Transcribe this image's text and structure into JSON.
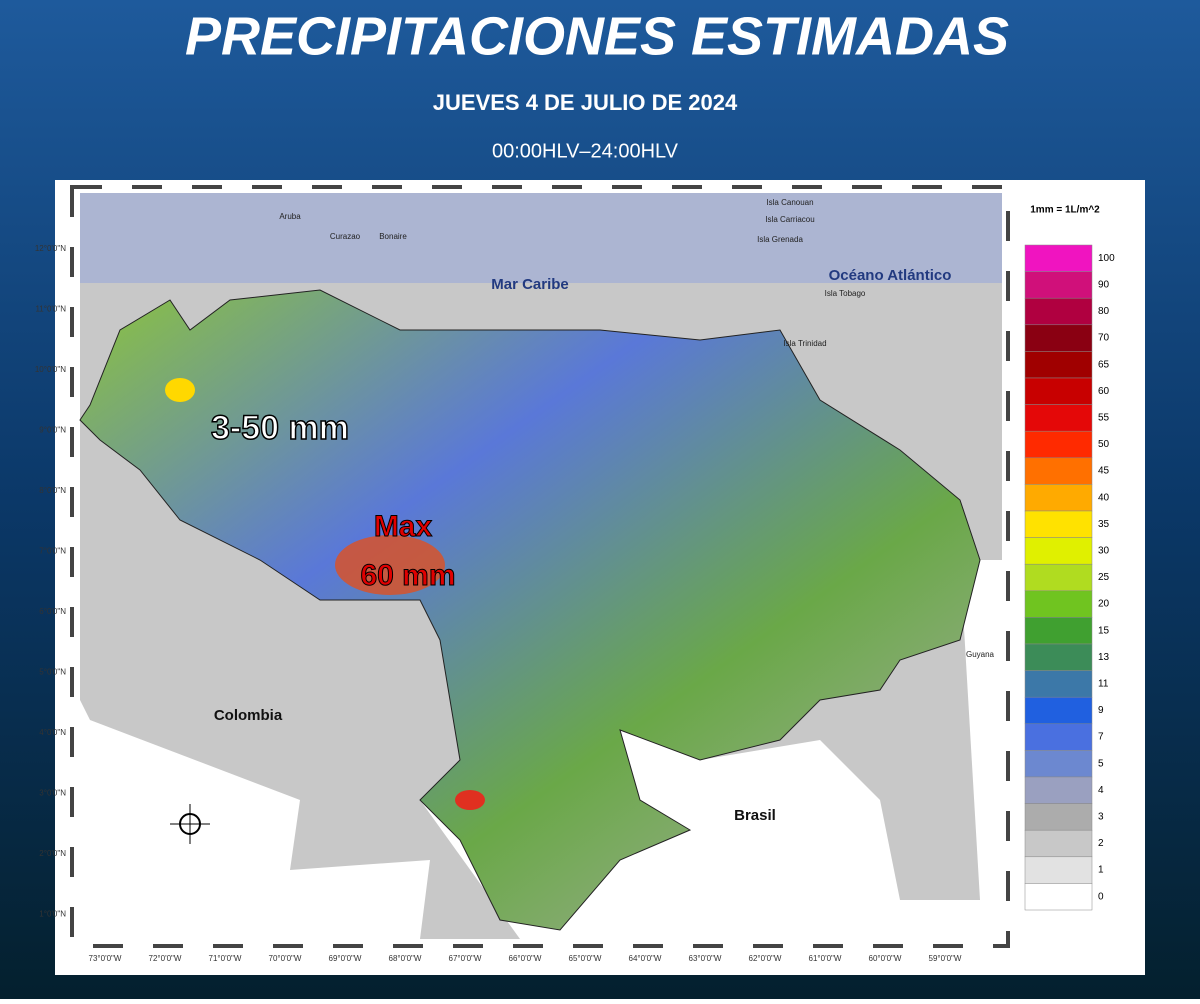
{
  "header": {
    "title": "PRECIPITACIONES ESTIMADAS",
    "date": "JUEVES 4 DE JULIO DE 2024",
    "period": "00:00HLV–24:00HLV"
  },
  "map": {
    "lat_ticks": [
      "12°0'0\"N",
      "11°0'0\"N",
      "10°0'0\"N",
      "9°0'0\"N",
      "8°0'0\"N",
      "7°0'0\"N",
      "6°0'0\"N",
      "5°0'0\"N",
      "4°0'0\"N",
      "3°0'0\"N",
      "2°0'0\"N",
      "1°0'0\"N"
    ],
    "lon_ticks": [
      "73°0'0\"W",
      "72°0'0\"W",
      "71°0'0\"W",
      "70°0'0\"W",
      "69°0'0\"W",
      "68°0'0\"W",
      "67°0'0\"W",
      "66°0'0\"W",
      "65°0'0\"W",
      "64°0'0\"W",
      "63°0'0\"W",
      "62°0'0\"W",
      "61°0'0\"W",
      "60°0'0\"W",
      "59°0'0\"W"
    ],
    "places": [
      "Mar Caribe",
      "Océano Atlántico",
      "Colombia",
      "Brasil",
      "Guyana",
      "Isla Canouan",
      "Isla Carriacou",
      "Isla Grenada",
      "Isla Tobago",
      "Isla Trinidad",
      "Aruba",
      "Curazao",
      "Bonaire"
    ],
    "annotations": [
      "3-50 mm",
      "Max",
      "60 mm"
    ]
  },
  "legend": {
    "title": "1mm = 1L/m^2",
    "items": [
      {
        "label": "100",
        "color": "#f014c0"
      },
      {
        "label": "90",
        "color": "#d0107a"
      },
      {
        "label": "80",
        "color": "#b00040"
      },
      {
        "label": "70",
        "color": "#8a0012"
      },
      {
        "label": "65",
        "color": "#a00000"
      },
      {
        "label": "60",
        "color": "#c80000"
      },
      {
        "label": "55",
        "color": "#e40808"
      },
      {
        "label": "50",
        "color": "#ff2a00"
      },
      {
        "label": "45",
        "color": "#ff7000"
      },
      {
        "label": "40",
        "color": "#ffaa00"
      },
      {
        "label": "35",
        "color": "#ffe200"
      },
      {
        "label": "30",
        "color": "#e0f000"
      },
      {
        "label": "25",
        "color": "#b0dc20"
      },
      {
        "label": "20",
        "color": "#70c420"
      },
      {
        "label": "15",
        "color": "#40a030"
      },
      {
        "label": "13",
        "color": "#3c8c58"
      },
      {
        "label": "11",
        "color": "#3c78a8"
      },
      {
        "label": "9",
        "color": "#2060e0"
      },
      {
        "label": "7",
        "color": "#4a70e0"
      },
      {
        "label": "5",
        "color": "#6c88d0"
      },
      {
        "label": "4",
        "color": "#9aa0c0"
      },
      {
        "label": "3",
        "color": "#acacac"
      },
      {
        "label": "2",
        "color": "#c8c8c8"
      },
      {
        "label": "1",
        "color": "#e2e2e2"
      },
      {
        "label": "0",
        "color": "#ffffff"
      }
    ]
  }
}
